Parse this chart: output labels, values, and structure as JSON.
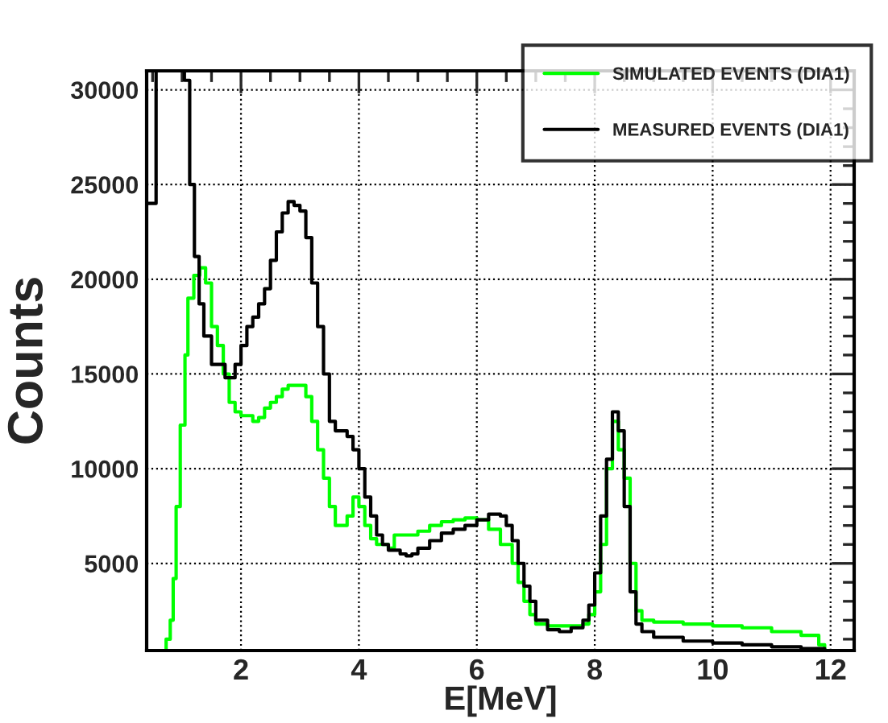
{
  "chart_data": {
    "type": "step",
    "xlabel": "E[MeV]",
    "ylabel": "Counts",
    "xlim": [
      0.4,
      12.4
    ],
    "ylim": [
      400,
      31000
    ],
    "xticks": [
      2,
      4,
      6,
      8,
      10,
      12
    ],
    "yticks": [
      5000,
      10000,
      15000,
      20000,
      25000,
      30000
    ],
    "grid": true,
    "legend": "top right",
    "marker": "none",
    "line_style": "solid",
    "series": [
      {
        "name": "SIMULATED EVENTS (DIA1)",
        "color": "#00ff00",
        "x": [
          0.7,
          0.73,
          0.8,
          0.85,
          0.9,
          0.97,
          1.05,
          1.1,
          1.2,
          1.3,
          1.4,
          1.5,
          1.6,
          1.7,
          1.8,
          1.9,
          2.0,
          2.2,
          2.3,
          2.4,
          2.5,
          2.6,
          2.7,
          2.8,
          3.0,
          3.1,
          3.2,
          3.3,
          3.4,
          3.5,
          3.6,
          3.7,
          3.8,
          3.9,
          4.0,
          4.1,
          4.2,
          4.3,
          4.5,
          4.6,
          4.8,
          5.0,
          5.2,
          5.4,
          5.6,
          5.8,
          6.0,
          6.2,
          6.4,
          6.6,
          6.7,
          6.8,
          6.9,
          7.0,
          7.2,
          7.5,
          7.8,
          7.9,
          8.0,
          8.1,
          8.2,
          8.3,
          8.4,
          8.5,
          8.6,
          8.7,
          8.8,
          9.0,
          9.5,
          10.0,
          10.5,
          11.0,
          11.5,
          11.8,
          11.9
        ],
        "values": [
          400,
          1000,
          2000,
          4200,
          8000,
          12300,
          16000,
          19000,
          20200,
          20600,
          19800,
          17500,
          16500,
          15000,
          13500,
          13000,
          12800,
          12500,
          12700,
          13200,
          13500,
          13800,
          14200,
          14400,
          14400,
          13800,
          12500,
          11000,
          9500,
          8000,
          7000,
          7000,
          7500,
          8500,
          8000,
          7000,
          6300,
          6000,
          5800,
          6500,
          6500,
          6700,
          7000,
          7200,
          7300,
          7400,
          7300,
          6800,
          6000,
          5000,
          4000,
          3000,
          2300,
          1800,
          1700,
          1700,
          1800,
          2300,
          3500,
          6000,
          10000,
          12500,
          11000,
          9500,
          5000,
          2500,
          2000,
          1900,
          1800,
          1700,
          1600,
          1400,
          1200,
          700,
          500
        ]
      },
      {
        "name": "MEASURED EVENTS (DIA1)",
        "color": "#000000",
        "x": [
          0.4,
          0.56,
          1.04,
          1.13,
          1.21,
          1.29,
          1.37,
          1.5,
          1.73,
          1.9,
          2.0,
          2.1,
          2.2,
          2.3,
          2.4,
          2.5,
          2.6,
          2.7,
          2.8,
          2.9,
          3.0,
          3.1,
          3.2,
          3.3,
          3.4,
          3.5,
          3.6,
          3.7,
          3.8,
          3.9,
          4.0,
          4.1,
          4.2,
          4.3,
          4.4,
          4.5,
          4.7,
          4.8,
          4.9,
          5.0,
          5.2,
          5.4,
          5.6,
          5.8,
          6.0,
          6.2,
          6.4,
          6.5,
          6.6,
          6.7,
          6.8,
          6.9,
          7.0,
          7.2,
          7.4,
          7.6,
          7.8,
          7.9,
          8.0,
          8.1,
          8.2,
          8.3,
          8.4,
          8.5,
          8.6,
          8.7,
          8.8,
          9.0,
          9.5,
          10.0,
          10.5,
          11.0,
          11.5,
          11.9
        ],
        "values": [
          24000,
          31000,
          30500,
          25000,
          21200,
          18700,
          17000,
          15500,
          14800,
          15500,
          16500,
          17500,
          18000,
          18700,
          19500,
          21000,
          22500,
          23500,
          24100,
          23900,
          23600,
          22200,
          19800,
          17500,
          15000,
          12500,
          12000,
          12000,
          11700,
          11000,
          10000,
          8500,
          7500,
          6500,
          6000,
          5700,
          5500,
          5400,
          5500,
          5800,
          6200,
          6600,
          6800,
          7000,
          7300,
          7600,
          7500,
          7000,
          6200,
          5000,
          3800,
          3000,
          2000,
          1500,
          1400,
          1600,
          2000,
          2800,
          4500,
          7500,
          10500,
          13000,
          12000,
          8000,
          3500,
          1800,
          1400,
          1100,
          900,
          800,
          700,
          600,
          500,
          400
        ]
      }
    ]
  }
}
